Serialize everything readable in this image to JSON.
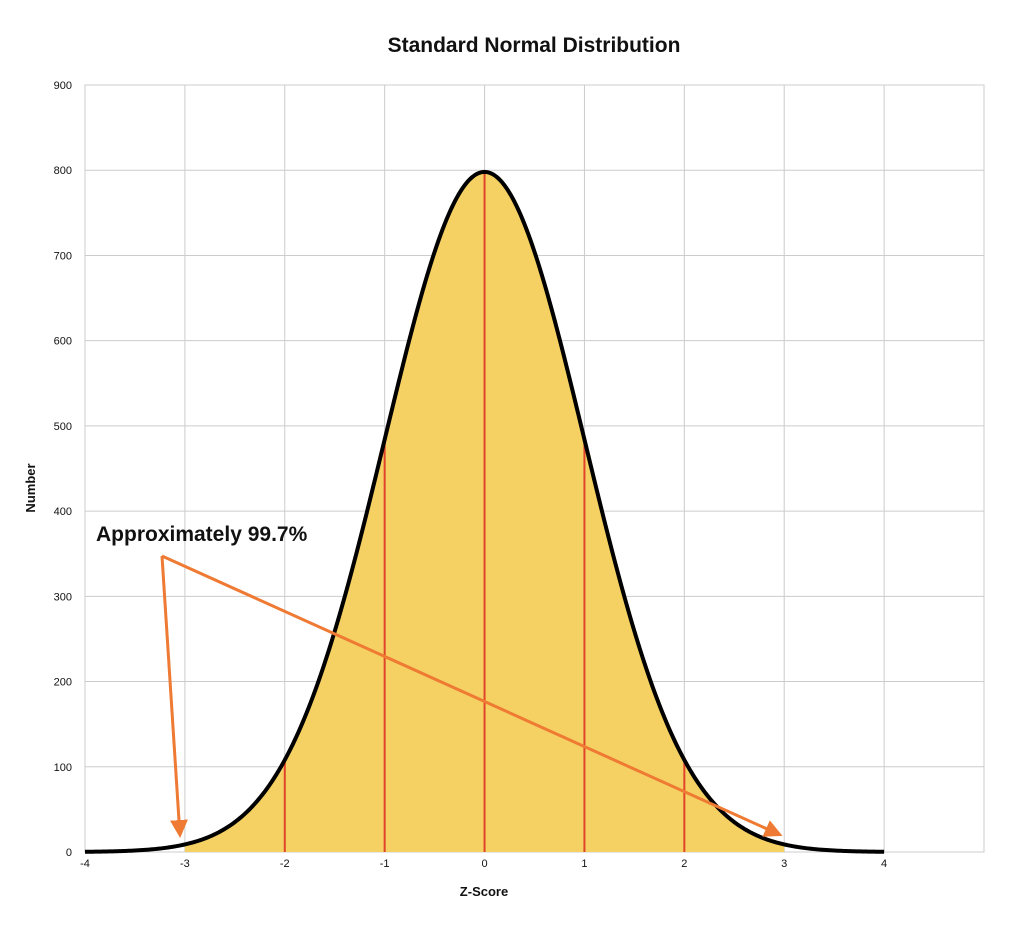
{
  "chart_data": {
    "type": "area",
    "title": "Standard Normal Distribution",
    "xlabel": "Z-Score",
    "ylabel": "Number",
    "xlim": [
      -4,
      5
    ],
    "ylim": [
      0,
      900
    ],
    "x_ticks": [
      -4,
      -3,
      -2,
      -1,
      0,
      1,
      2,
      3,
      4
    ],
    "y_ticks": [
      0,
      100,
      200,
      300,
      400,
      500,
      600,
      700,
      800,
      900
    ],
    "grid": true,
    "legend": "none",
    "peak": 798,
    "curve": "standard normal density scaled to a peak of 798",
    "shaded_range": [
      -3,
      3
    ],
    "sigma_lines": [
      -2,
      -1,
      0,
      1,
      2
    ],
    "annotation": {
      "text": "Approximately 99.7%",
      "arrow_targets": [
        -3,
        3
      ]
    },
    "colors": {
      "fill": "#F5D062",
      "curve": "#000000",
      "sigma_lines": "#E0452B",
      "arrows": "#EE7A33",
      "grid": "#CCCCCC"
    }
  }
}
